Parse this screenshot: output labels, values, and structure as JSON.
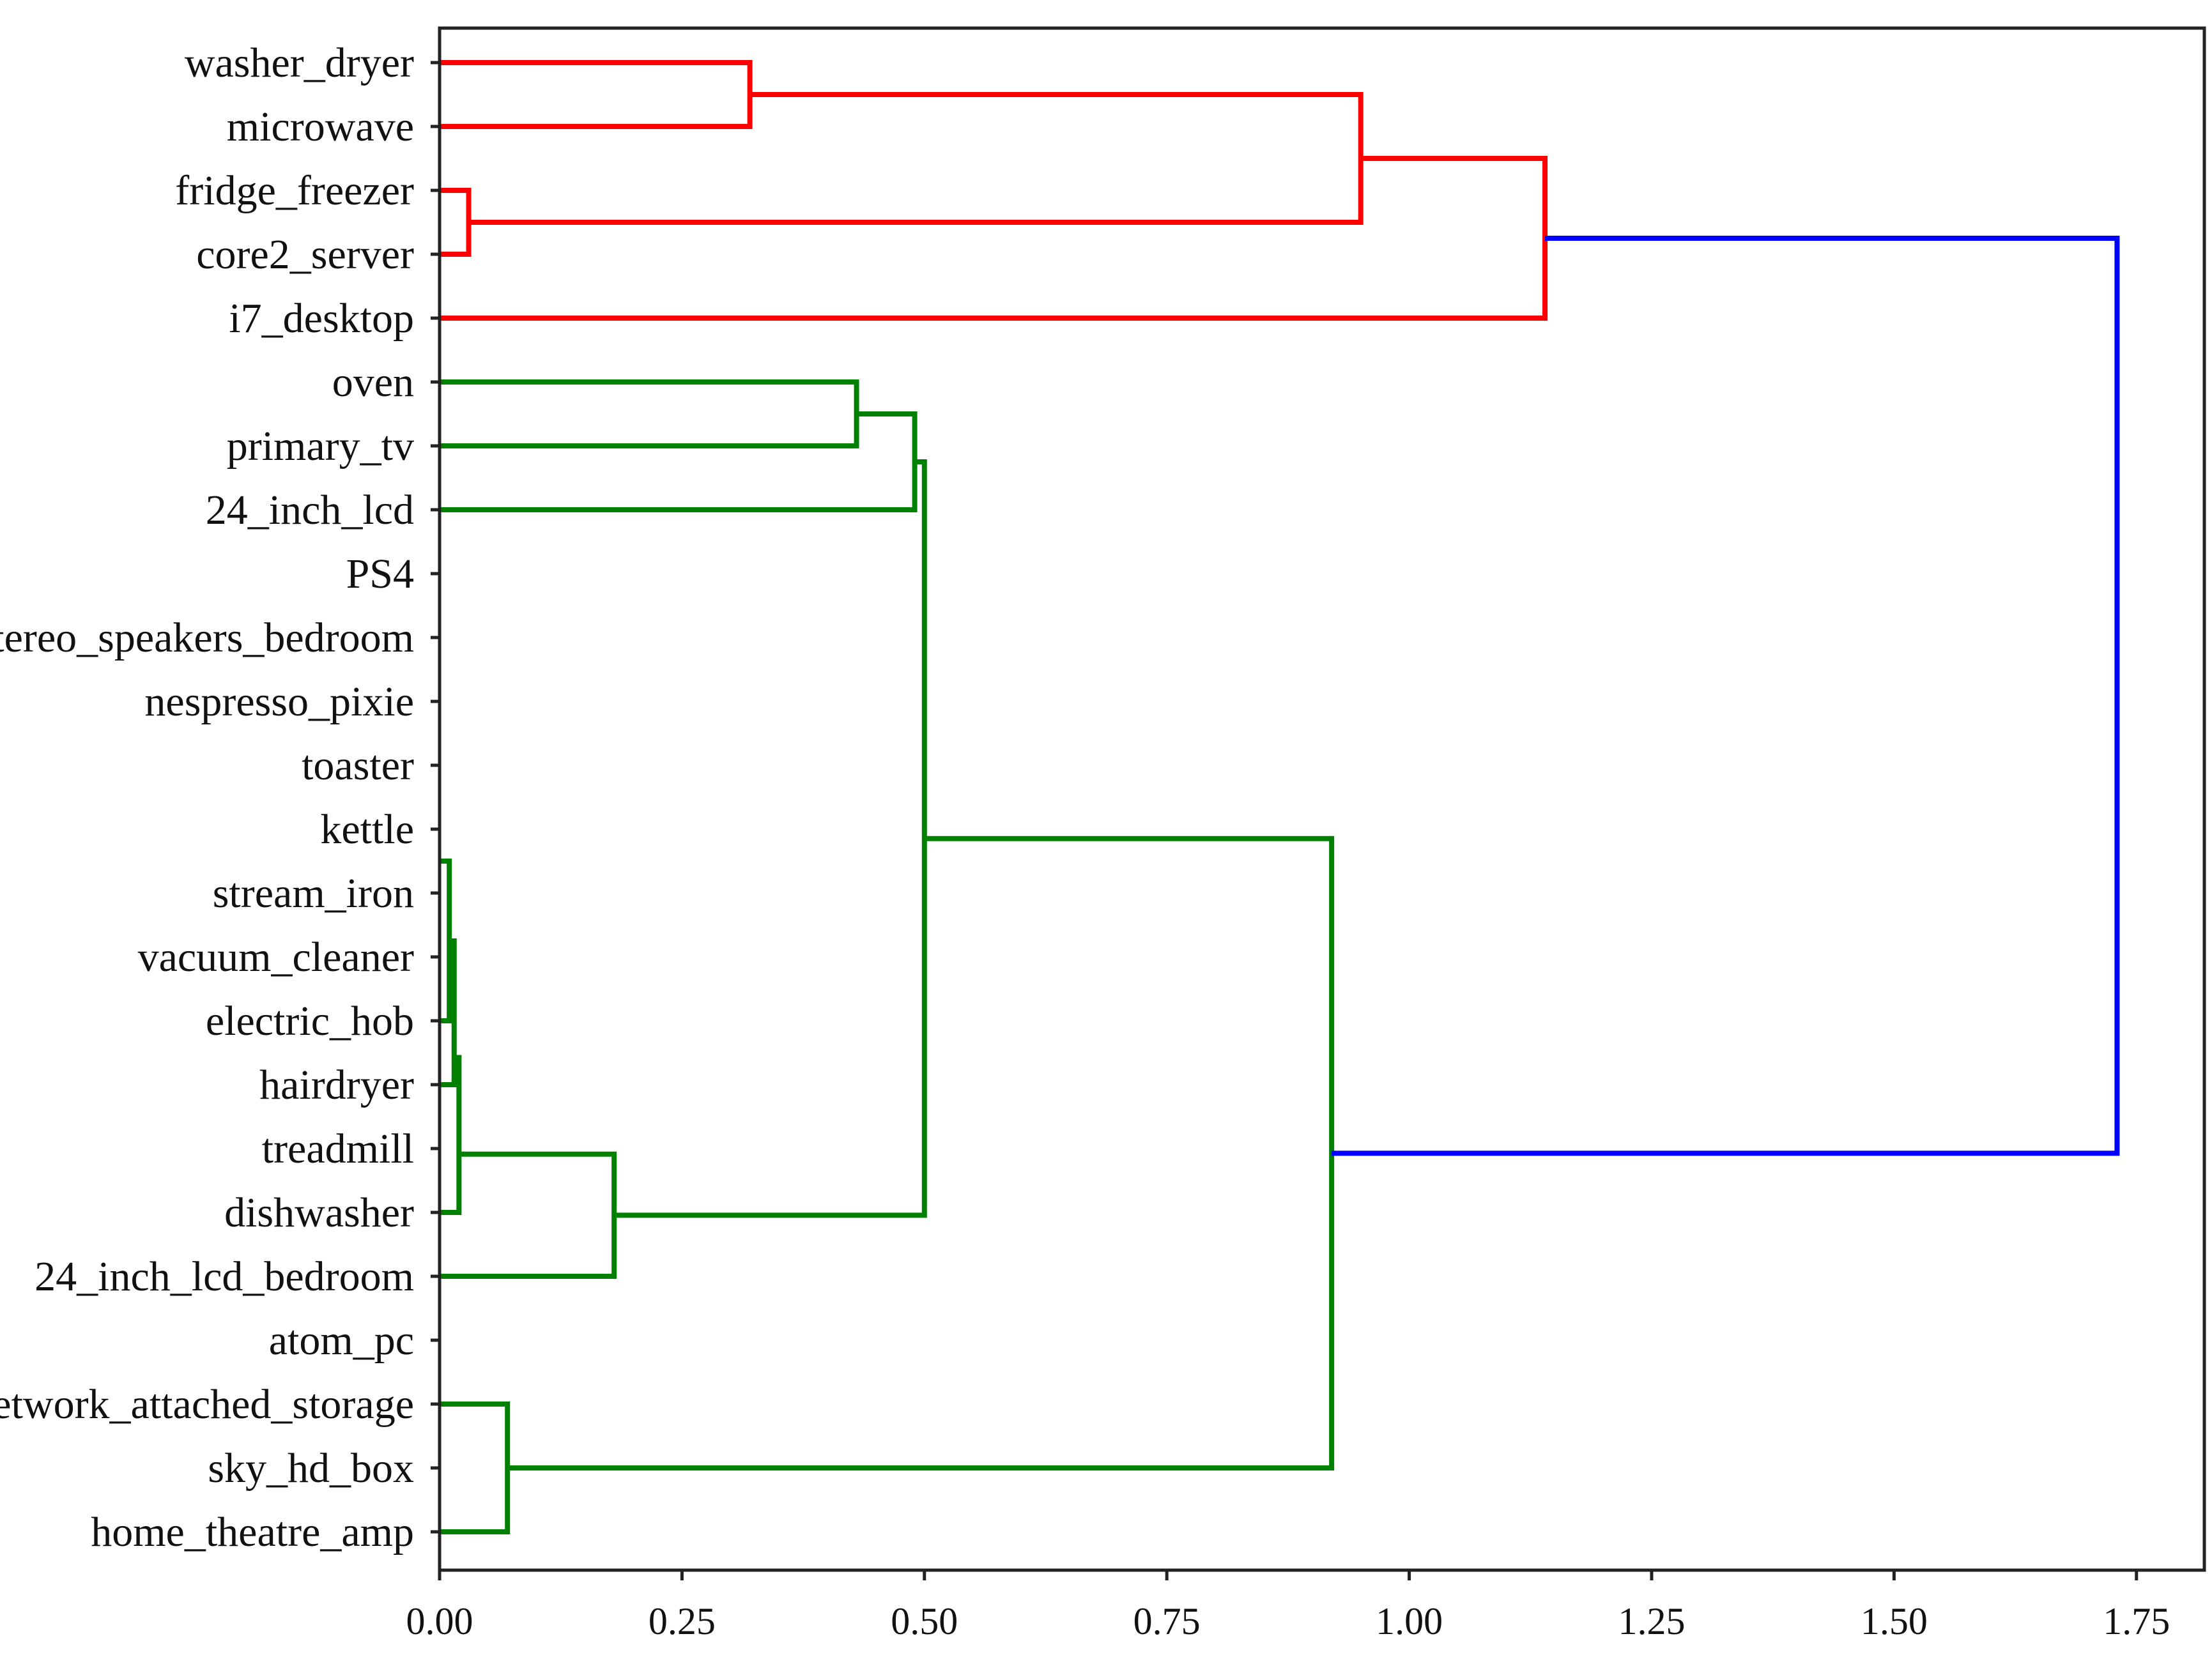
{
  "chart_data": {
    "type": "dendrogram",
    "orientation": "horizontal",
    "xlim": [
      0,
      1.82
    ],
    "x_ticks": [
      "0.00",
      "0.25",
      "0.50",
      "0.75",
      "1.00",
      "1.25",
      "1.50",
      "1.75"
    ],
    "x_tick_values": [
      0,
      0.25,
      0.5,
      0.75,
      1.0,
      1.25,
      1.5,
      1.75
    ],
    "leaves": [
      "washer_dryer",
      "microwave",
      "fridge_freezer",
      "core2_server",
      "i7_desktop",
      "oven",
      "primary_tv",
      "24_inch_lcd",
      "PS4",
      "stereo_speakers_bedroom",
      "nespresso_pixie",
      "toaster",
      "kettle",
      "stream_iron",
      "vacuum_cleaner",
      "electric_hob",
      "hairdryer",
      "treadmill",
      "dishwasher",
      "24_inch_lcd_bedroom",
      "atom_pc",
      "network_attached_storage",
      "sky_hd_box",
      "home_theatre_amp"
    ],
    "colors": {
      "cluster_1": "#ff0000",
      "cluster_2": "#008000",
      "root": "#0000ff"
    },
    "merges": [
      {
        "left": "washer_dryer",
        "right": "microwave",
        "height": 0.32,
        "color": "#ff0000"
      },
      {
        "left": "fridge_freezer",
        "right": "core2_server",
        "height": 0.03,
        "color": "#ff0000"
      },
      {
        "left": "washer_dryer+microwave",
        "right": "fridge_freezer+core2_server",
        "height": 0.95,
        "color": "#ff0000"
      },
      {
        "left": "washer_dryer+microwave+fridge_freezer+core2_server",
        "right": "i7_desktop",
        "height": 1.14,
        "color": "#ff0000"
      },
      {
        "left": "oven",
        "right": "primary_tv",
        "height": 0.43,
        "color": "#008000"
      },
      {
        "left": "oven+primary_tv",
        "right": "24_inch_lcd",
        "height": 0.49,
        "color": "#008000"
      },
      {
        "left": "PS4..vacuum_cleaner",
        "right": "electric_hob",
        "height": 0.01,
        "color": "#008000"
      },
      {
        "left": "PS4..electric_hob",
        "right": "hairdryer",
        "height": 0.015,
        "color": "#008000"
      },
      {
        "left": "PS4..hairdryer",
        "right": "dishwasher",
        "height": 0.02,
        "color": "#008000"
      },
      {
        "left": "PS4..dishwasher",
        "right": "24_inch_lcd_bedroom",
        "height": 0.18,
        "color": "#008000"
      },
      {
        "left": "oven+primary_tv+24_inch_lcd",
        "right": "PS4..24_inch_lcd_bedroom",
        "height": 0.5,
        "color": "#008000"
      },
      {
        "left": "atom_pc+network_attached_storage",
        "right": "sky_hd_box+home_theatre_amp",
        "height": 0.07,
        "color": "#008000"
      },
      {
        "left": "oven..24_inch_lcd_bedroom",
        "right": "atom_pc..home_theatre_amp",
        "height": 0.92,
        "color": "#008000"
      },
      {
        "left": "red_cluster",
        "right": "green_cluster",
        "height": 1.73,
        "color": "#0000ff"
      }
    ]
  }
}
